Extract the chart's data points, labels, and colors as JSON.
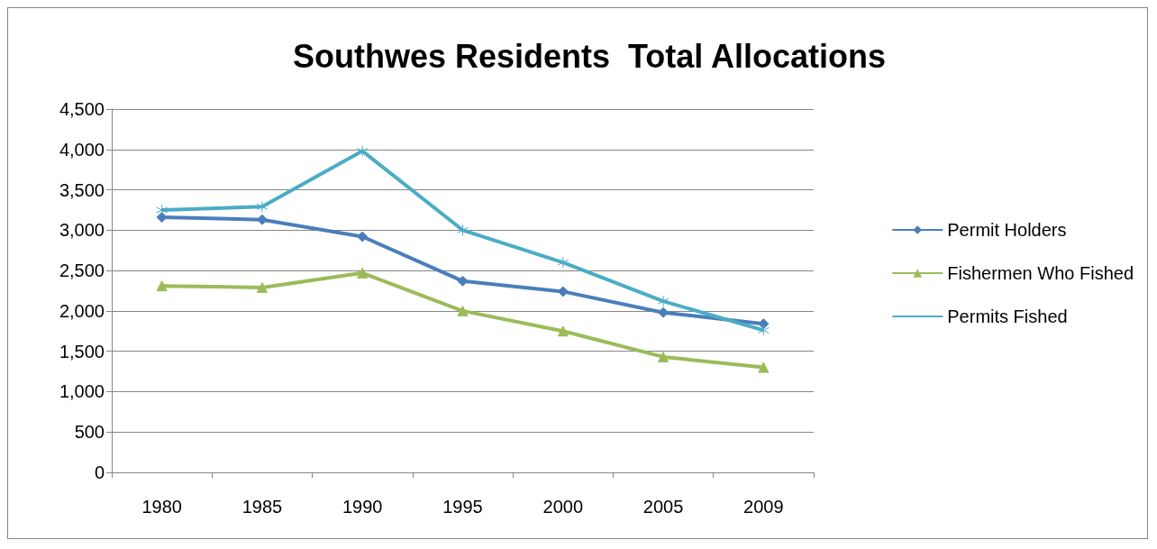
{
  "chart_data": {
    "type": "line",
    "title": "Southwes Residents  Total Allocations",
    "categories": [
      "1980",
      "1985",
      "1990",
      "1995",
      "2000",
      "2005",
      "2009"
    ],
    "series": [
      {
        "name": "Permit Holders",
        "color": "#4a7ebb",
        "marker": "diamond",
        "values": [
          3160,
          3130,
          2920,
          2370,
          2240,
          1980,
          1840
        ]
      },
      {
        "name": "Fishermen Who Fished",
        "color": "#9bbb59",
        "marker": "triangle",
        "values": [
          2310,
          2290,
          2470,
          2000,
          1750,
          1430,
          1300
        ]
      },
      {
        "name": "Permits Fished",
        "color": "#4bacc6",
        "marker": "star",
        "values": [
          3250,
          3290,
          3980,
          3000,
          2600,
          2120,
          1760
        ]
      }
    ],
    "ylim": [
      0,
      4500
    ],
    "yticks": [
      0,
      500,
      {
        "value": 1000,
        "label": "1,000"
      },
      {
        "value": 1500,
        "label": "1,500"
      },
      {
        "value": 2000,
        "label": "2,000"
      },
      {
        "value": 2500,
        "label": "2,500"
      },
      {
        "value": 3000,
        "label": "3,000"
      },
      {
        "value": 3500,
        "label": "3,500"
      },
      {
        "value": 4000,
        "label": "4,000"
      },
      {
        "value": 4500,
        "label": "4,500"
      }
    ],
    "grid": "y",
    "legend": "right"
  }
}
